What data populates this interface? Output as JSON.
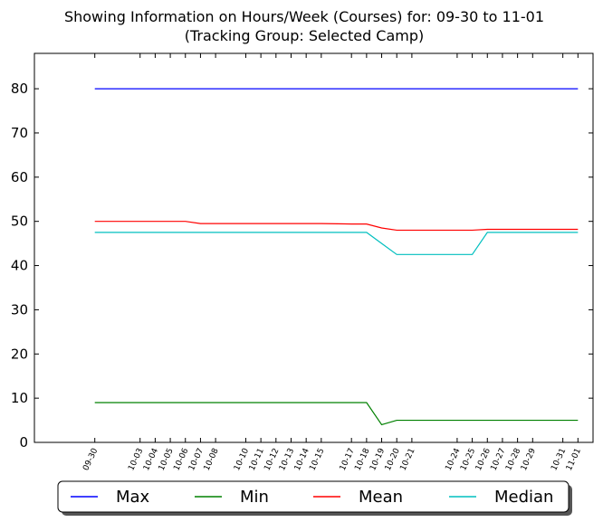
{
  "chart_data": {
    "type": "line",
    "title_line1": "Showing Information on Hours/Week (Courses) for: 09-30 to 11-01",
    "title_line2": "(Tracking Group: Selected Camp)",
    "xlabel": "",
    "ylabel": "",
    "ylim": [
      0,
      88
    ],
    "yticks": [
      0,
      10,
      20,
      30,
      40,
      50,
      60,
      70,
      80
    ],
    "x_dates": [
      "2016-09-30",
      "2016-10-03",
      "2016-10-04",
      "2016-10-05",
      "2016-10-06",
      "2016-10-07",
      "2016-10-08",
      "2016-10-10",
      "2016-10-11",
      "2016-10-12",
      "2016-10-13",
      "2016-10-14",
      "2016-10-15",
      "2016-10-17",
      "2016-10-18",
      "2016-10-19",
      "2016-10-20",
      "2016-10-21",
      "2016-10-24",
      "2016-10-25",
      "2016-10-26",
      "2016-10-27",
      "2016-10-28",
      "2016-10-29",
      "2016-10-31",
      "2016-11-01"
    ],
    "x_labels": [
      "09-30",
      "10-03",
      "10-04",
      "10-05",
      "10-06",
      "10-07",
      "10-08",
      "10-10",
      "10-11",
      "10-12",
      "10-13",
      "10-14",
      "10-15",
      "10-17",
      "10-18",
      "10-19",
      "10-20",
      "10-21",
      "10-24",
      "10-25",
      "10-26",
      "10-27",
      "10-28",
      "10-29",
      "10-31",
      "11-01"
    ],
    "x_range": [
      "2016-09-26",
      "2016-11-02"
    ],
    "grid": false,
    "legend_position": "bottom",
    "series": [
      {
        "name": "Max",
        "color": "#0000ff",
        "values": [
          80,
          80,
          80,
          80,
          80,
          80,
          80,
          80,
          80,
          80,
          80,
          80,
          80,
          80,
          80,
          80,
          80,
          80,
          80,
          80,
          80,
          80,
          80,
          80,
          80,
          80
        ]
      },
      {
        "name": "Min",
        "color": "#008000",
        "values": [
          9,
          9,
          9,
          9,
          9,
          9,
          9,
          9,
          9,
          9,
          9,
          9,
          9,
          9,
          9,
          4,
          5,
          5,
          5,
          5,
          5,
          5,
          5,
          5,
          5,
          5
        ]
      },
      {
        "name": "Mean",
        "color": "#ff0000",
        "values": [
          50,
          50,
          50,
          50,
          50,
          49.5,
          49.5,
          49.5,
          49.5,
          49.5,
          49.5,
          49.5,
          49.5,
          49.4,
          49.4,
          48.5,
          48,
          48,
          48,
          48,
          48.2,
          48.2,
          48.2,
          48.2,
          48.2,
          48.2
        ]
      },
      {
        "name": "Median",
        "color": "#00bfbf",
        "values": [
          47.5,
          47.5,
          47.5,
          47.5,
          47.5,
          47.5,
          47.5,
          47.5,
          47.5,
          47.5,
          47.5,
          47.5,
          47.5,
          47.5,
          47.5,
          45,
          42.5,
          42.5,
          42.5,
          42.5,
          47.5,
          47.5,
          47.5,
          47.5,
          47.5,
          47.5
        ]
      }
    ]
  }
}
